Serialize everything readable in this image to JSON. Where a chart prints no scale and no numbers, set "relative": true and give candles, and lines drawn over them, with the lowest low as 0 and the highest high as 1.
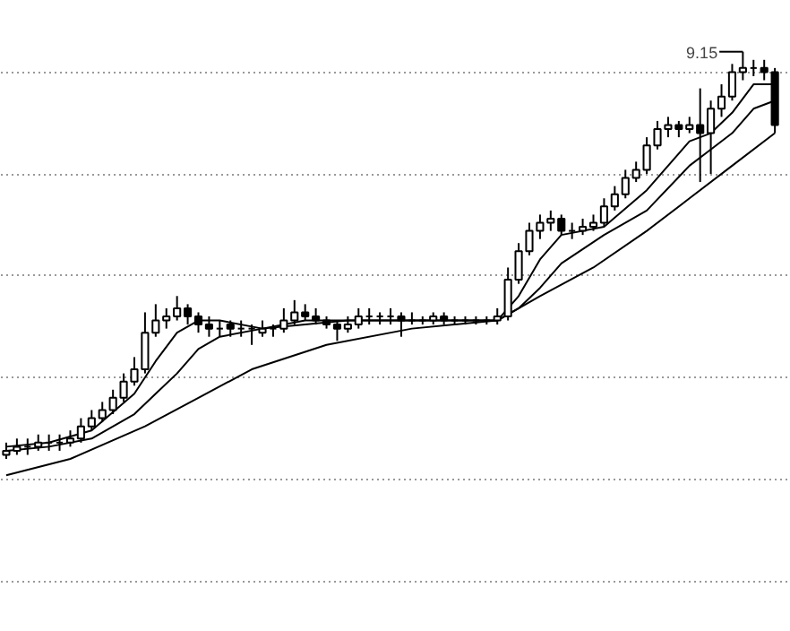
{
  "chart_data": {
    "type": "candlestick",
    "relative": true,
    "grid": "y",
    "categories": [
      null,
      null,
      null,
      null,
      null,
      null,
      null,
      null,
      null,
      null,
      null,
      null,
      null,
      null,
      null,
      null,
      null,
      null,
      null,
      null,
      null,
      null,
      null,
      null,
      null,
      null,
      null,
      null,
      null,
      null,
      null,
      null,
      null,
      null,
      null,
      null,
      null,
      null,
      null,
      null,
      null,
      null,
      null,
      null,
      null,
      null,
      null,
      null,
      null,
      null,
      null,
      null,
      null,
      null,
      null,
      null,
      null,
      null,
      null,
      null,
      null,
      null,
      null,
      null,
      null,
      null,
      null,
      null,
      null,
      null,
      null,
      null,
      null
    ],
    "ohlc": [
      [
        0.01,
        0.04,
        0,
        0.02
      ],
      [
        0.02,
        0.05,
        0.01,
        0.03
      ],
      [
        0.03,
        0.05,
        0.01,
        0.03
      ],
      [
        0.03,
        0.06,
        0.02,
        0.04
      ],
      [
        0.04,
        0.06,
        0.02,
        0.04
      ],
      [
        0.04,
        0.06,
        0.02,
        0.04
      ],
      [
        0.04,
        0.07,
        0.03,
        0.05
      ],
      [
        0.05,
        0.1,
        0.04,
        0.08
      ],
      [
        0.08,
        0.12,
        0.07,
        0.1
      ],
      [
        0.1,
        0.14,
        0.09,
        0.12
      ],
      [
        0.12,
        0.17,
        0.11,
        0.15
      ],
      [
        0.15,
        0.21,
        0.14,
        0.19
      ],
      [
        0.19,
        0.25,
        0.18,
        0.22
      ],
      [
        0.22,
        0.36,
        0.21,
        0.31
      ],
      [
        0.31,
        0.38,
        0.3,
        0.34
      ],
      [
        0.34,
        0.37,
        0.32,
        0.35
      ],
      [
        0.35,
        0.4,
        0.34,
        0.37
      ],
      [
        0.37,
        0.38,
        0.33,
        0.35
      ],
      [
        0.35,
        0.36,
        0.31,
        0.33
      ],
      [
        0.33,
        0.35,
        0.3,
        0.32
      ],
      [
        0.32,
        0.34,
        0.3,
        0.32
      ],
      [
        0.33,
        0.34,
        0.3,
        0.32
      ],
      [
        0.32,
        0.34,
        0.3,
        0.32
      ],
      [
        0.32,
        0.33,
        0.28,
        0.32
      ],
      [
        0.31,
        0.34,
        0.3,
        0.32
      ],
      [
        0.32,
        0.33,
        0.3,
        0.32
      ],
      [
        0.32,
        0.37,
        0.31,
        0.34
      ],
      [
        0.34,
        0.39,
        0.33,
        0.36
      ],
      [
        0.36,
        0.38,
        0.34,
        0.35
      ],
      [
        0.35,
        0.37,
        0.33,
        0.34
      ],
      [
        0.34,
        0.35,
        0.32,
        0.33
      ],
      [
        0.33,
        0.34,
        0.29,
        0.32
      ],
      [
        0.32,
        0.35,
        0.31,
        0.33
      ],
      [
        0.33,
        0.37,
        0.32,
        0.35
      ],
      [
        0.35,
        0.37,
        0.33,
        0.35
      ],
      [
        0.35,
        0.36,
        0.33,
        0.35
      ],
      [
        0.35,
        0.37,
        0.33,
        0.35
      ],
      [
        0.35,
        0.36,
        0.3,
        0.34
      ],
      [
        0.34,
        0.36,
        0.33,
        0.34
      ],
      [
        0.34,
        0.35,
        0.33,
        0.34
      ],
      [
        0.34,
        0.36,
        0.33,
        0.35
      ],
      [
        0.35,
        0.36,
        0.33,
        0.34
      ],
      [
        0.34,
        0.35,
        0.33,
        0.34
      ],
      [
        0.34,
        0.35,
        0.33,
        0.34
      ],
      [
        0.34,
        0.35,
        0.33,
        0.34
      ],
      [
        0.34,
        0.35,
        0.33,
        0.34
      ],
      [
        0.34,
        0.37,
        0.33,
        0.35
      ],
      [
        0.35,
        0.47,
        0.34,
        0.44
      ],
      [
        0.44,
        0.53,
        0.43,
        0.51
      ],
      [
        0.51,
        0.58,
        0.5,
        0.56
      ],
      [
        0.56,
        0.6,
        0.54,
        0.58
      ],
      [
        0.58,
        0.61,
        0.56,
        0.59
      ],
      [
        0.59,
        0.6,
        0.55,
        0.56
      ],
      [
        0.56,
        0.58,
        0.54,
        0.56
      ],
      [
        0.56,
        0.59,
        0.55,
        0.57
      ],
      [
        0.57,
        0.6,
        0.56,
        0.58
      ],
      [
        0.58,
        0.64,
        0.57,
        0.62
      ],
      [
        0.62,
        0.67,
        0.61,
        0.65
      ],
      [
        0.65,
        0.71,
        0.64,
        0.69
      ],
      [
        0.69,
        0.73,
        0.68,
        0.71
      ],
      [
        0.71,
        0.79,
        0.7,
        0.77
      ],
      [
        0.77,
        0.83,
        0.76,
        0.81
      ],
      [
        0.81,
        0.84,
        0.79,
        0.82
      ],
      [
        0.82,
        0.83,
        0.79,
        0.81
      ],
      [
        0.81,
        0.84,
        0.8,
        0.82
      ],
      [
        0.82,
        0.91,
        0.68,
        0.8
      ],
      [
        0.8,
        0.88,
        0.7,
        0.86
      ],
      [
        0.86,
        0.92,
        0.84,
        0.89
      ],
      [
        0.89,
        0.97,
        0.88,
        0.95
      ],
      [
        0.95,
        1.0,
        0.93,
        0.96
      ],
      [
        0.96,
        0.98,
        0.94,
        0.96
      ],
      [
        0.96,
        0.98,
        0.93,
        0.95
      ],
      [
        0.95,
        0.96,
        0.8,
        0.82
      ]
    ],
    "series": [
      {
        "type": "line",
        "color": "#000000",
        "values": [
          0.03,
          null,
          null,
          null,
          0.04,
          null,
          null,
          null,
          0.07,
          null,
          null,
          null,
          0.16,
          null,
          0.24,
          null,
          0.31,
          null,
          0.34,
          null,
          0.34,
          null,
          null,
          null,
          0.32,
          null,
          null,
          null,
          0.34,
          null,
          null,
          null,
          0.34,
          null,
          null,
          null,
          0.34,
          null,
          null,
          null,
          0.34,
          null,
          null,
          null,
          0.34,
          null,
          0.34,
          null,
          0.4,
          null,
          0.49,
          null,
          0.55,
          null,
          null,
          null,
          0.57,
          null,
          null,
          null,
          0.66,
          null,
          null,
          null,
          0.78,
          null,
          0.8,
          null,
          0.85,
          null,
          0.92,
          null,
          0.92
        ]
      },
      {
        "type": "line",
        "color": "#000000",
        "values": [
          0.02,
          null,
          null,
          null,
          0.03,
          null,
          null,
          null,
          0.05,
          null,
          null,
          null,
          0.11,
          null,
          0.16,
          null,
          0.21,
          null,
          0.27,
          null,
          0.3,
          null,
          null,
          null,
          0.32,
          null,
          null,
          null,
          0.33,
          null,
          null,
          null,
          0.34,
          null,
          null,
          null,
          0.34,
          null,
          null,
          null,
          0.34,
          null,
          null,
          null,
          0.34,
          null,
          0.34,
          null,
          0.37,
          null,
          0.42,
          null,
          0.48,
          null,
          null,
          null,
          0.55,
          null,
          null,
          null,
          0.61,
          null,
          null,
          null,
          0.72,
          null,
          0.76,
          null,
          0.8,
          null,
          0.86,
          null,
          0.88
        ]
      },
      {
        "type": "line",
        "color": "#000000",
        "values": [
          -0.04,
          null,
          null,
          null,
          null,
          null,
          0.0,
          null,
          null,
          null,
          null,
          null,
          null,
          0.08,
          null,
          null,
          null,
          null,
          0.15,
          null,
          null,
          null,
          null,
          0.22,
          null,
          null,
          null,
          null,
          null,
          null,
          0.28,
          null,
          null,
          null,
          null,
          null,
          null,
          null,
          0.32,
          null,
          null,
          null,
          null,
          null,
          null,
          null,
          0.34,
          null,
          null,
          null,
          0.4,
          null,
          null,
          null,
          null,
          0.47,
          null,
          null,
          null,
          null,
          0.56,
          null,
          null,
          null,
          0.64,
          null,
          null,
          null,
          0.72,
          null,
          null,
          null,
          0.8
        ]
      }
    ],
    "annotations": [
      "9.15"
    ]
  }
}
